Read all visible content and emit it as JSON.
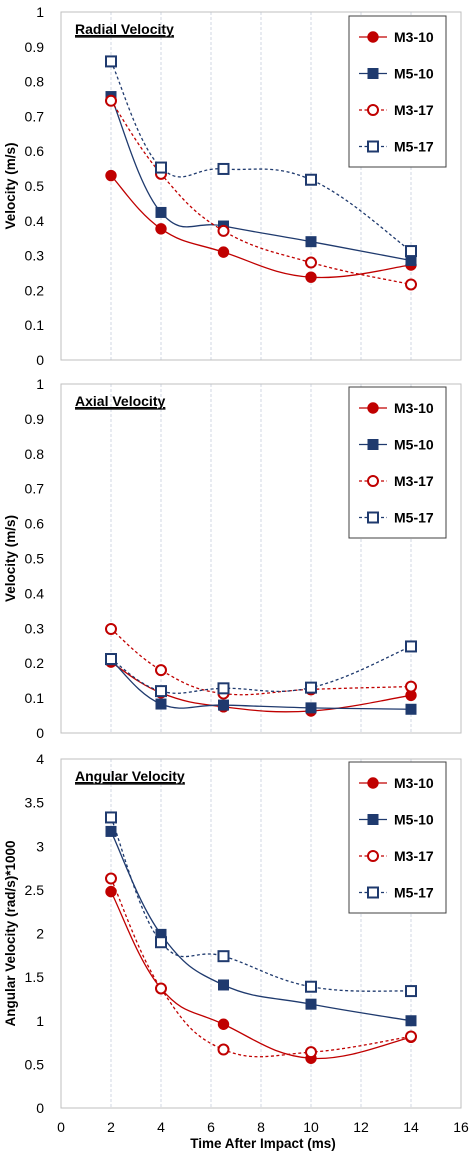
{
  "chart_data": [
    {
      "type": "line",
      "title": "Radial Velocity",
      "xlabel": "",
      "ylabel": "Velocity (m/s)",
      "xlim": [
        0,
        16
      ],
      "ylim": [
        0,
        1
      ],
      "yticks": [
        "0",
        "0.1",
        "0.2",
        "0.3",
        "0.4",
        "0.5",
        "0.6",
        "0.7",
        "0.8",
        "0.9",
        "1"
      ],
      "grid": "vertical",
      "legend": "top-right",
      "series": [
        {
          "name": "M3-10",
          "x": [
            2,
            4,
            6.5,
            10,
            14
          ],
          "y": [
            0.53,
            0.377,
            0.31,
            0.238,
            0.273
          ],
          "marker": "circle",
          "fill": "filled",
          "line": "solid",
          "color": "#c00000"
        },
        {
          "name": "M5-10",
          "x": [
            2,
            4,
            6.5,
            10,
            14
          ],
          "y": [
            0.757,
            0.424,
            0.385,
            0.34,
            0.286
          ],
          "marker": "square",
          "fill": "filled",
          "line": "solid",
          "color": "#1f3a6e"
        },
        {
          "name": "M3-17",
          "x": [
            2,
            4,
            6.5,
            10,
            14
          ],
          "y": [
            0.745,
            0.535,
            0.371,
            0.28,
            0.217
          ],
          "marker": "circle",
          "fill": "open",
          "line": "dashed",
          "color": "#c00000"
        },
        {
          "name": "M5-17",
          "x": [
            2,
            4,
            6.5,
            10,
            14
          ],
          "y": [
            0.858,
            0.553,
            0.549,
            0.518,
            0.313
          ],
          "marker": "square",
          "fill": "open",
          "line": "dashed",
          "color": "#1f3a6e"
        }
      ]
    },
    {
      "type": "line",
      "title": "Axial Velocity",
      "xlabel": "",
      "ylabel": "Velocity (m/s)",
      "xlim": [
        0,
        16
      ],
      "ylim": [
        0,
        1
      ],
      "yticks": [
        "0",
        "0.1",
        "0.2",
        "0.3",
        "0.4",
        "0.5",
        "0.6",
        "0.7",
        "0.8",
        "0.9",
        "1"
      ],
      "grid": "vertical",
      "legend": "top-right",
      "series": [
        {
          "name": "M3-10",
          "x": [
            2,
            4,
            6.5,
            10,
            14
          ],
          "y": [
            0.203,
            0.115,
            0.075,
            0.063,
            0.108
          ],
          "marker": "circle",
          "fill": "filled",
          "line": "solid",
          "color": "#c00000"
        },
        {
          "name": "M5-10",
          "x": [
            2,
            4,
            6.5,
            10,
            14
          ],
          "y": [
            0.21,
            0.083,
            0.08,
            0.072,
            0.068
          ],
          "marker": "square",
          "fill": "filled",
          "line": "solid",
          "color": "#1f3a6e"
        },
        {
          "name": "M3-17",
          "x": [
            2,
            4,
            6.5,
            10,
            14
          ],
          "y": [
            0.298,
            0.18,
            0.113,
            0.125,
            0.133
          ],
          "marker": "circle",
          "fill": "open",
          "line": "dashed",
          "color": "#c00000"
        },
        {
          "name": "M5-17",
          "x": [
            2,
            4,
            6.5,
            10,
            14
          ],
          "y": [
            0.212,
            0.12,
            0.128,
            0.13,
            0.248
          ],
          "marker": "square",
          "fill": "open",
          "line": "dashed",
          "color": "#1f3a6e"
        }
      ]
    },
    {
      "type": "line",
      "title": "Angular Velocity",
      "xlabel": "Time After Impact (ms)",
      "ylabel": "Angular Velocity (rad/s)*1000",
      "xlim": [
        0,
        16
      ],
      "ylim": [
        0,
        4
      ],
      "xticks": [
        "0",
        "2",
        "4",
        "6",
        "8",
        "10",
        "12",
        "14",
        "16"
      ],
      "yticks": [
        "0",
        "0.5",
        "1",
        "1.5",
        "2",
        "2.5",
        "3",
        "3.5",
        "4"
      ],
      "grid": "vertical",
      "legend": "top-right",
      "series": [
        {
          "name": "M3-10",
          "x": [
            2,
            4,
            6.5,
            10,
            14
          ],
          "y": [
            2.48,
            1.37,
            0.96,
            0.57,
            0.81
          ],
          "marker": "circle",
          "fill": "filled",
          "line": "solid",
          "color": "#c00000"
        },
        {
          "name": "M5-10",
          "x": [
            2,
            4,
            6.5,
            10,
            14
          ],
          "y": [
            3.17,
            1.99,
            1.41,
            1.19,
            1.0
          ],
          "marker": "square",
          "fill": "filled",
          "line": "solid",
          "color": "#1f3a6e"
        },
        {
          "name": "M3-17",
          "x": [
            2,
            4,
            6.5,
            10,
            14
          ],
          "y": [
            2.63,
            1.37,
            0.67,
            0.64,
            0.82
          ],
          "marker": "circle",
          "fill": "open",
          "line": "dashed",
          "color": "#c00000"
        },
        {
          "name": "M5-17",
          "x": [
            2,
            4,
            6.5,
            10,
            14
          ],
          "y": [
            3.33,
            1.9,
            1.74,
            1.39,
            1.34
          ],
          "marker": "square",
          "fill": "open",
          "line": "dashed",
          "color": "#1f3a6e"
        }
      ]
    }
  ]
}
